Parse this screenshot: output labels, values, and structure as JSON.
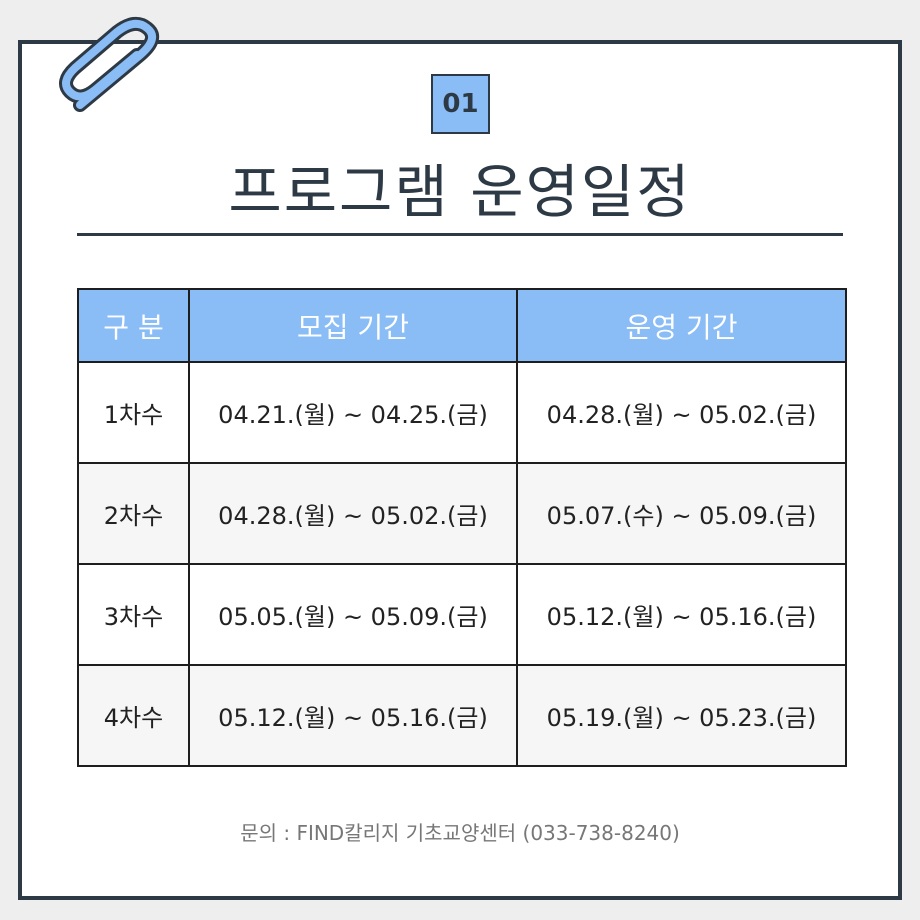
{
  "badge": "01",
  "title": "프로그램 운영일정",
  "table": {
    "headers": [
      "구 분",
      "모집 기간",
      "운영 기간"
    ],
    "rows": [
      [
        "1차수",
        "04.21.(월) ~ 04.25.(금)",
        "04.28.(월) ~ 05.02.(금)"
      ],
      [
        "2차수",
        "04.28.(월) ~ 05.02.(금)",
        "05.07.(수) ~ 05.09.(금)"
      ],
      [
        "3차수",
        "05.05.(월) ~ 05.09.(금)",
        "05.12.(월) ~ 05.16.(금)"
      ],
      [
        "4차수",
        "05.12.(월) ~ 05.16.(금)",
        "05.19.(월) ~ 05.23.(금)"
      ]
    ]
  },
  "footer": "문의 : FIND칼리지 기초교양센터 (033-738-8240)",
  "colors": {
    "accent": "#8abcf5",
    "border": "#2d3a45"
  },
  "icons": {
    "clip": "paperclip-icon"
  }
}
